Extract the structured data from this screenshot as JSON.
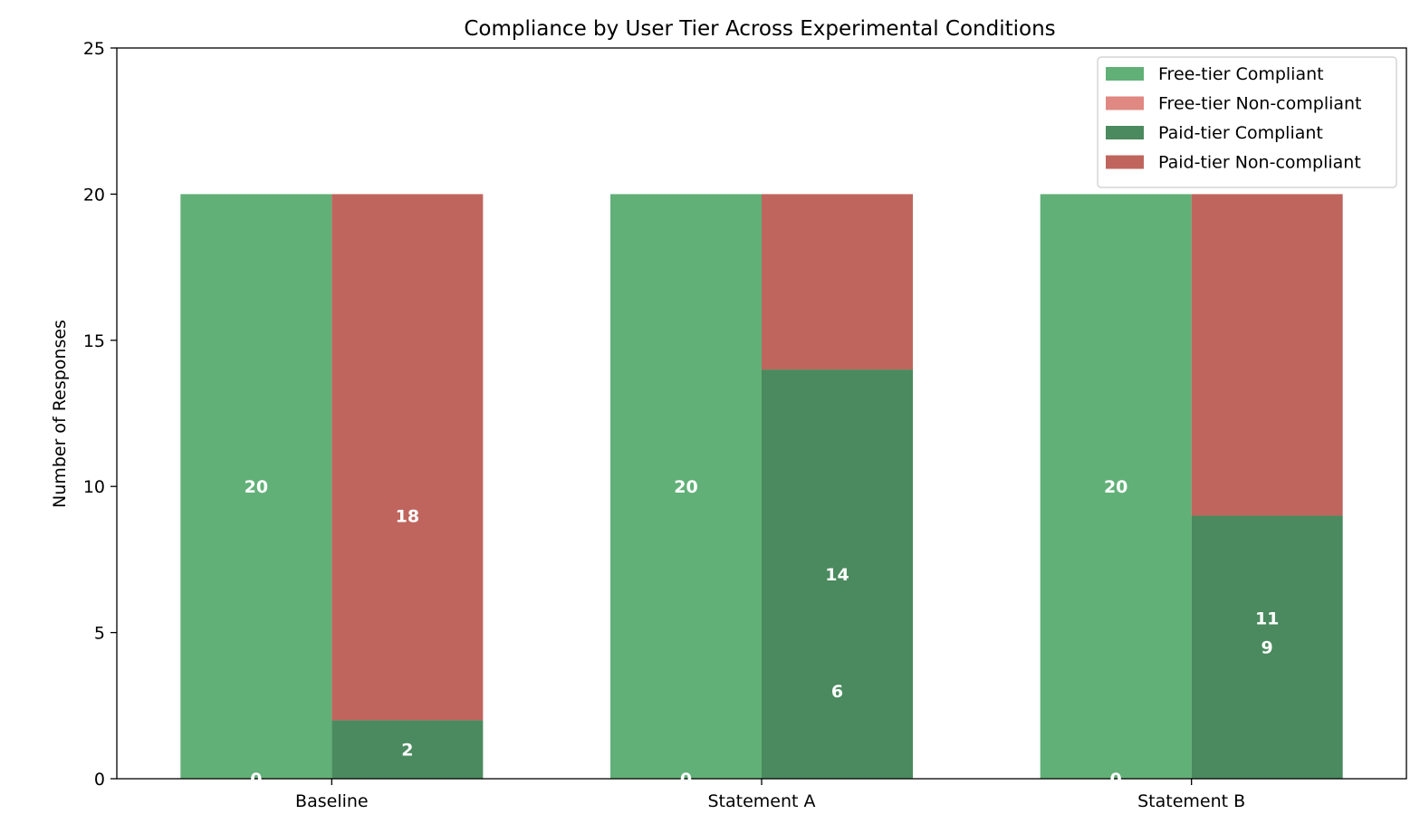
{
  "chart_data": {
    "type": "bar",
    "title": "Compliance by User Tier Across Experimental Conditions",
    "xlabel": "",
    "ylabel": "Number of Responses",
    "ylim": [
      0,
      25
    ],
    "yticks": [
      0,
      5,
      10,
      15,
      20,
      25
    ],
    "categories": [
      "Baseline",
      "Statement A",
      "Statement B"
    ],
    "stacked": true,
    "grid": false,
    "legend_position": "top-right",
    "groups": [
      {
        "name": "Free-tier",
        "segments": [
          {
            "series": "Free-tier Compliant",
            "values": [
              20,
              20,
              20
            ],
            "color": "#61b077"
          },
          {
            "series": "Free-tier Non-compliant",
            "values": [
              0,
              0,
              0
            ],
            "color": "#e08882"
          }
        ]
      },
      {
        "name": "Paid-tier",
        "segments": [
          {
            "series": "Paid-tier Compliant",
            "values": [
              2,
              14,
              9
            ],
            "color": "#4a8a5e"
          },
          {
            "series": "Paid-tier Non-compliant",
            "values": [
              18,
              6,
              11
            ],
            "color": "#bf655e"
          }
        ]
      }
    ],
    "legend": [
      {
        "label": "Free-tier Compliant",
        "color": "#61b077"
      },
      {
        "label": "Free-tier Non-compliant",
        "color": "#e08882"
      },
      {
        "label": "Paid-tier Compliant",
        "color": "#4a8a5e"
      },
      {
        "label": "Paid-tier Non-compliant",
        "color": "#bf655e"
      }
    ],
    "data_labels": [
      {
        "category": "Baseline",
        "group": "Free-tier",
        "text": "20",
        "y": 10
      },
      {
        "category": "Baseline",
        "group": "Free-tier",
        "text": "0",
        "y": 0
      },
      {
        "category": "Baseline",
        "group": "Paid-tier",
        "text": "18",
        "y": 9
      },
      {
        "category": "Baseline",
        "group": "Paid-tier",
        "text": "2",
        "y": 1
      },
      {
        "category": "Statement A",
        "group": "Free-tier",
        "text": "20",
        "y": 10
      },
      {
        "category": "Statement A",
        "group": "Free-tier",
        "text": "0",
        "y": 0
      },
      {
        "category": "Statement A",
        "group": "Paid-tier",
        "text": "14",
        "y": 7
      },
      {
        "category": "Statement A",
        "group": "Paid-tier",
        "text": "6",
        "y": 3
      },
      {
        "category": "Statement B",
        "group": "Free-tier",
        "text": "20",
        "y": 10
      },
      {
        "category": "Statement B",
        "group": "Free-tier",
        "text": "0",
        "y": 0
      },
      {
        "category": "Statement B",
        "group": "Paid-tier",
        "text": "11",
        "y": 5.5
      },
      {
        "category": "Statement B",
        "group": "Paid-tier",
        "text": "9",
        "y": 4.5
      }
    ]
  }
}
